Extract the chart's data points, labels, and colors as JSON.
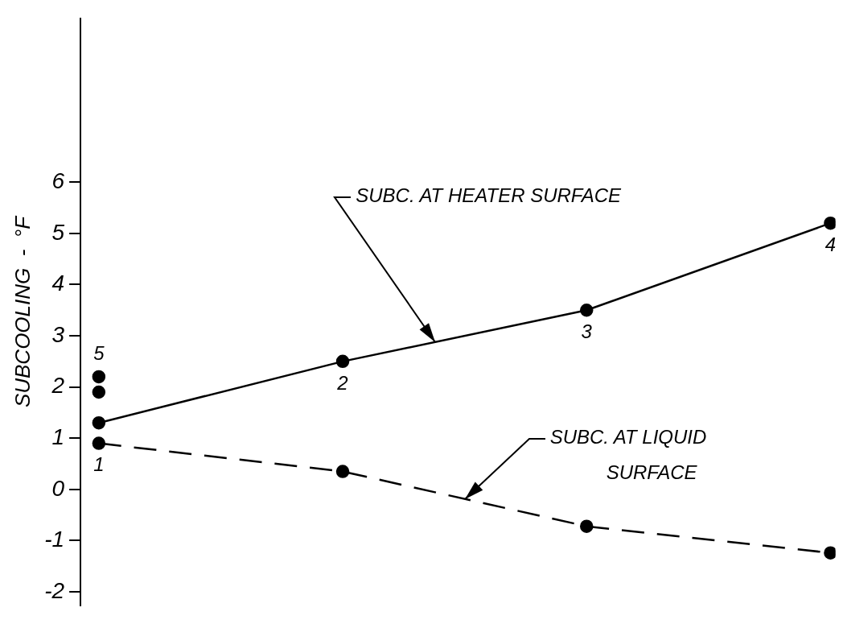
{
  "chart_data": {
    "type": "line",
    "ylabel": "SUBCOOLING  -  °F",
    "categories": [
      null,
      null,
      null,
      null
    ],
    "ylim": [
      -2.27,
      9.2
    ],
    "yticks": [
      -2,
      -1,
      0,
      1,
      2,
      3,
      4,
      5,
      6
    ],
    "grid": false,
    "legend": false,
    "tick_labels": "y",
    "marker": "circle",
    "series": [
      {
        "name": "SUBC. AT HEATER SURFACE",
        "color": "#000000",
        "line_style": "solid",
        "values": [
          1.3,
          2.5,
          3.5,
          5.2
        ]
      },
      {
        "name": "SUBC. AT LIQUID SURFACE",
        "color": "#000000",
        "line_style": "dashed",
        "values": [
          0.9,
          0.35,
          -0.72,
          -1.24
        ]
      },
      {
        "type": "scatter",
        "color": "#000000",
        "values": [
          2.2,
          null,
          null,
          null
        ]
      },
      {
        "type": "scatter",
        "color": "#000000",
        "values": [
          1.9,
          null,
          null,
          null
        ]
      }
    ],
    "annotations": [
      {
        "text": "1",
        "y": 0.9
      },
      {
        "text": "2",
        "y": 2.5
      },
      {
        "text": "3",
        "y": 3.5
      },
      {
        "text": "4",
        "y": 5.2
      },
      {
        "text": "5",
        "y": 2.2
      }
    ]
  }
}
